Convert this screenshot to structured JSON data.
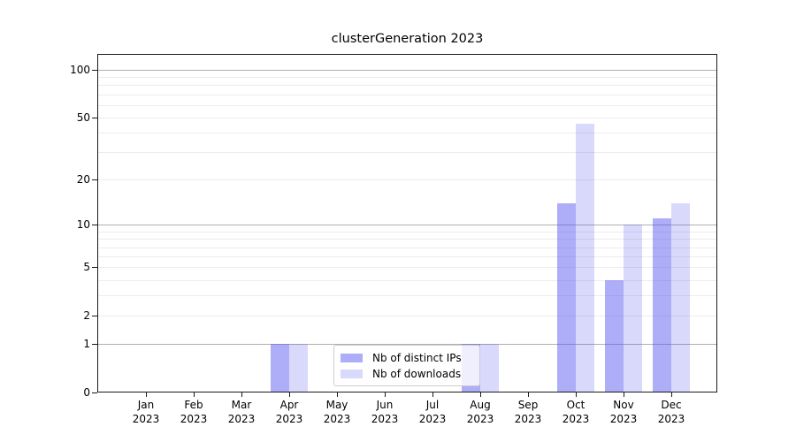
{
  "title": "clusterGeneration 2023",
  "chart_data": {
    "type": "bar",
    "title": "clusterGeneration 2023",
    "x_axis": {
      "categories": [
        "Jan",
        "Feb",
        "Mar",
        "Apr",
        "May",
        "Jun",
        "Jul",
        "Aug",
        "Sep",
        "Oct",
        "Nov",
        "Dec"
      ],
      "tick_line2": "2023"
    },
    "y_axis": {
      "scale": "log1p",
      "ticks": [
        0,
        1,
        2,
        5,
        10,
        20,
        50,
        100
      ],
      "range": [
        0,
        100
      ]
    },
    "series": [
      {
        "name": "Nb of distinct IPs",
        "color": "rgba(80,80,240,0.47)",
        "values": [
          0,
          0,
          0,
          1,
          0,
          0,
          0,
          1,
          0,
          14,
          4,
          11
        ]
      },
      {
        "name": "Nb of downloads",
        "color": "rgba(80,80,240,0.22)",
        "values": [
          0,
          0,
          0,
          1,
          0,
          0,
          0,
          1,
          0,
          46,
          10,
          14
        ]
      }
    ],
    "gridlines": {
      "minor": [
        2,
        3,
        4,
        6,
        7,
        8,
        9,
        20,
        30,
        40,
        60,
        70,
        80,
        90
      ],
      "labeled_minor": [
        5,
        50
      ],
      "major": [
        1,
        10,
        100
      ],
      "minor_color": "#ececec",
      "major_color": "#b0b0b0"
    },
    "legend": {
      "position": "lower center",
      "entries": [
        "Nb of distinct IPs",
        "Nb of downloads"
      ]
    }
  }
}
